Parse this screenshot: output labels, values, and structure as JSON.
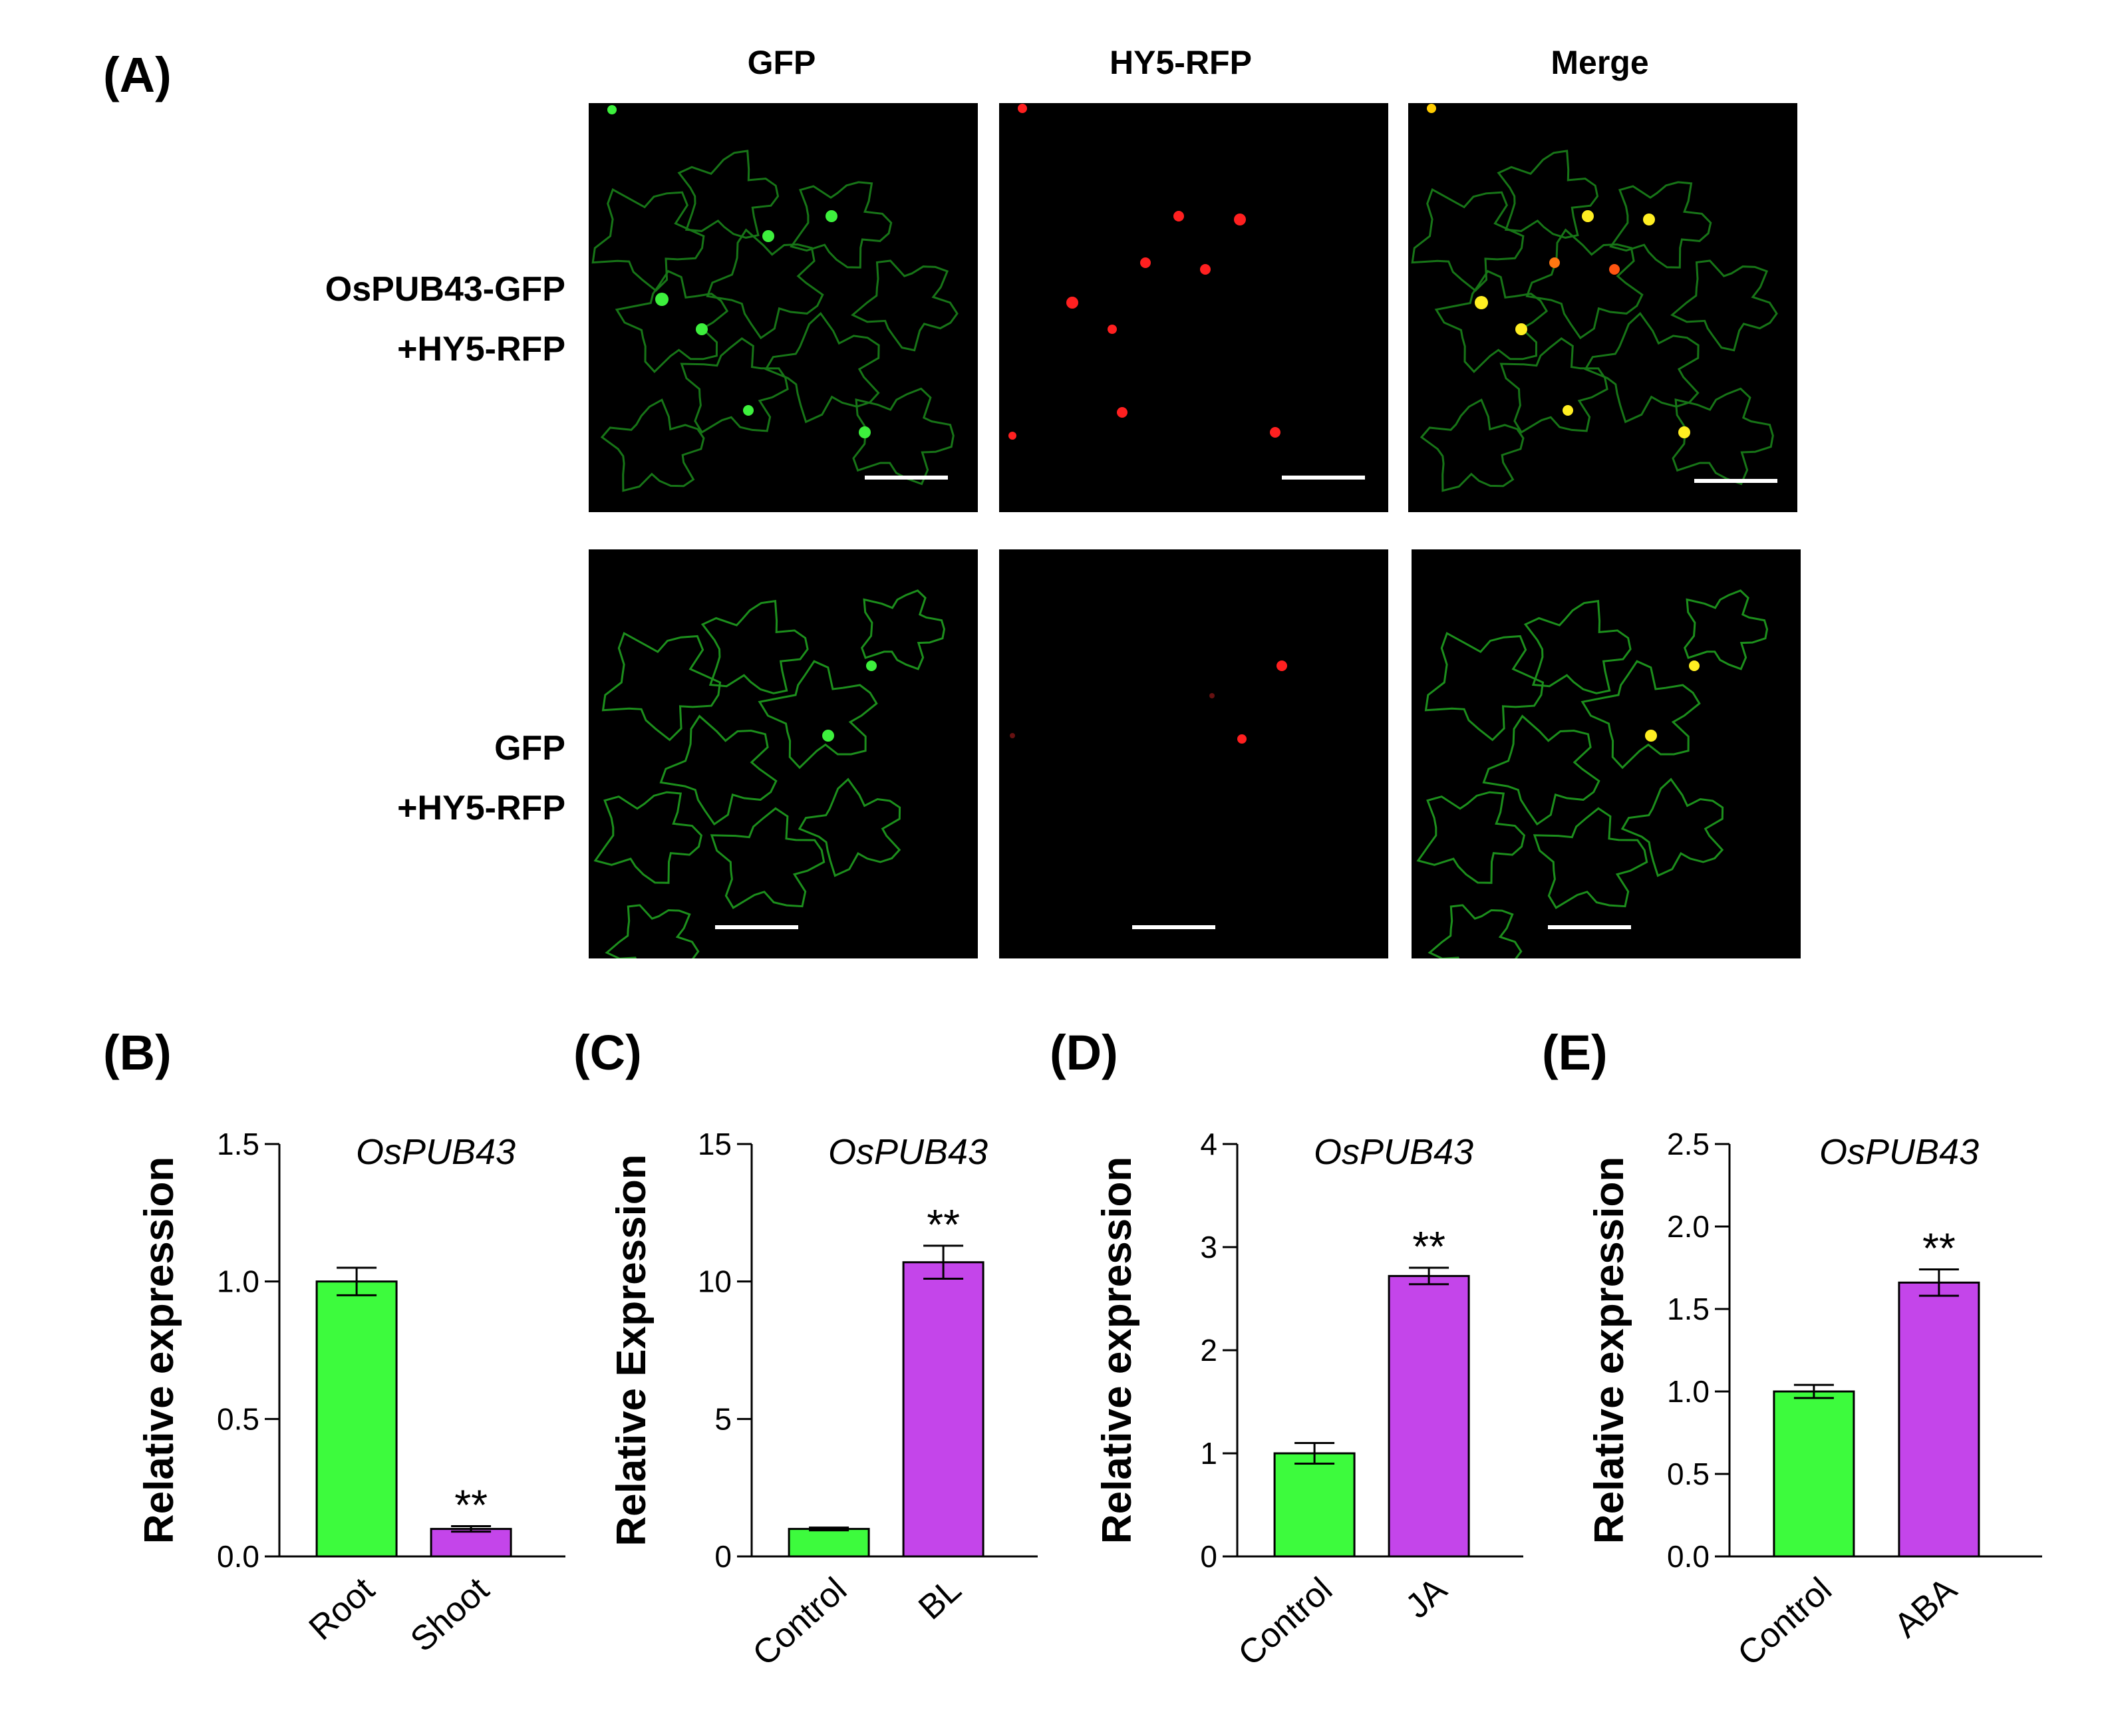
{
  "figure": {
    "panel_A": {
      "letter": "(A)",
      "columns": [
        "GFP",
        "HY5-RFP",
        "Merge"
      ],
      "rows": [
        {
          "line1": "OsPUB43-GFP",
          "line2": "+HY5-RFP"
        },
        {
          "line1": "GFP",
          "line2": "+HY5-RFP"
        }
      ]
    },
    "colors": {
      "control_bar": "#3dfb3d",
      "treatment_bar": "#c445ea",
      "gfp": "#22dd22",
      "rfp": "#ff2020",
      "merge_dot": "#ffee22",
      "scale_bar": "#ffffff"
    }
  },
  "chart_data": [
    {
      "letter": "(B)",
      "type": "bar",
      "title": "OsPUB43",
      "ylabel": "Relative expression",
      "categories": [
        "Root",
        "Shoot"
      ],
      "values": [
        1.0,
        0.1
      ],
      "errors": [
        0.05,
        0.01
      ],
      "significance": [
        "",
        "**"
      ],
      "ylim": [
        0,
        1.5
      ],
      "yticks": [
        "0.0",
        "0.5",
        "1.0",
        "1.5"
      ]
    },
    {
      "letter": "(C)",
      "type": "bar",
      "title": "OsPUB43",
      "ylabel": "Relative Expression",
      "categories": [
        "Control",
        "BL"
      ],
      "values": [
        1.0,
        10.7
      ],
      "errors": [
        0.05,
        0.6
      ],
      "significance": [
        "",
        "**"
      ],
      "ylim": [
        0,
        15
      ],
      "yticks": [
        "0",
        "5",
        "10",
        "15"
      ]
    },
    {
      "letter": "(D)",
      "type": "bar",
      "title": "OsPUB43",
      "ylabel": "Relative expression",
      "categories": [
        "Control",
        "JA"
      ],
      "values": [
        1.0,
        2.72
      ],
      "errors": [
        0.1,
        0.08
      ],
      "significance": [
        "",
        "**"
      ],
      "ylim": [
        0,
        4
      ],
      "yticks": [
        "0",
        "1",
        "2",
        "3",
        "4"
      ]
    },
    {
      "letter": "(E)",
      "type": "bar",
      "title": "OsPUB43",
      "ylabel": "Relative expression",
      "categories": [
        "Control",
        "ABA"
      ],
      "values": [
        1.0,
        1.66
      ],
      "errors": [
        0.04,
        0.08
      ],
      "significance": [
        "",
        "**"
      ],
      "ylim": [
        0,
        2.5
      ],
      "yticks": [
        "0.0",
        "0.5",
        "1.0",
        "1.5",
        "2.0",
        "2.5"
      ]
    }
  ]
}
